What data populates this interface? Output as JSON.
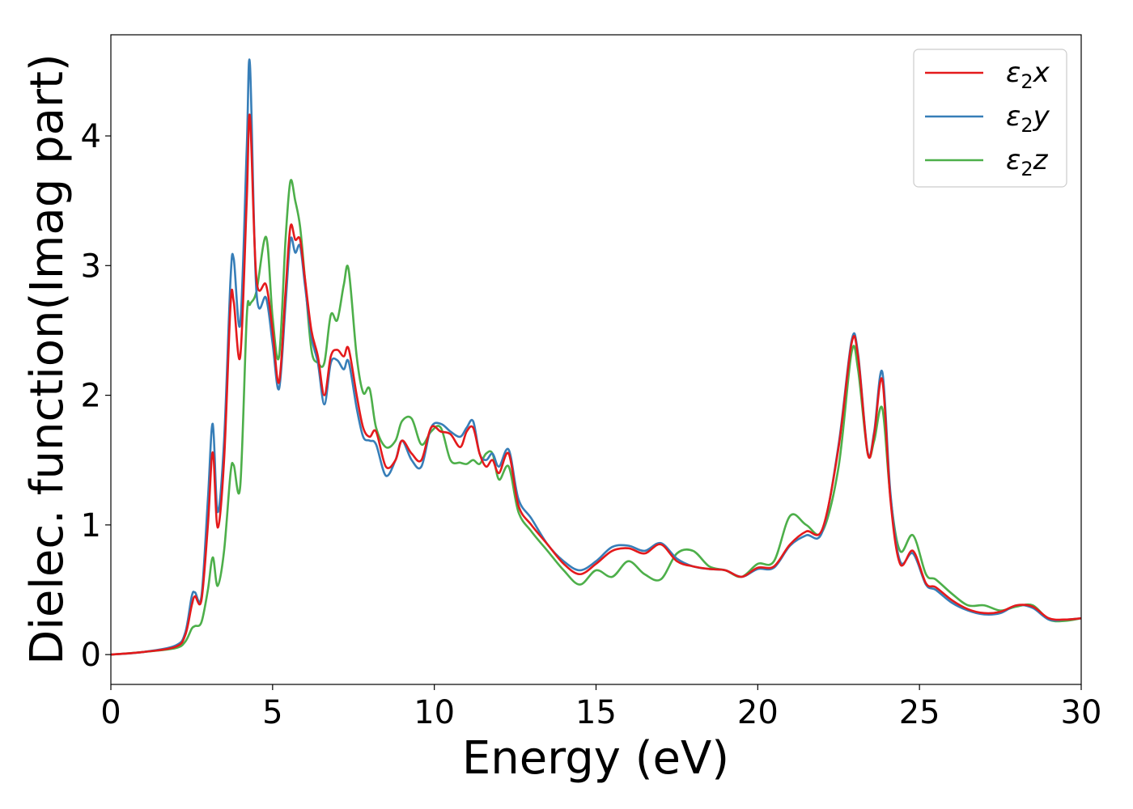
{
  "chart_data": {
    "type": "line",
    "xlabel": "Energy (eV)",
    "ylabel": "Dielec. function(Imag part)",
    "xlim": [
      0,
      30
    ],
    "ylim": [
      -0.23,
      4.78
    ],
    "xticks": [
      0,
      5,
      10,
      15,
      20,
      25,
      30
    ],
    "yticks": [
      0,
      1,
      2,
      3,
      4
    ],
    "grid": false,
    "legend_position": "top-right",
    "series": [
      {
        "name": "ε₂x",
        "legend": {
          "base": "ε",
          "sub": "2",
          "var": "x"
        },
        "color": "#e41a1c",
        "x": [
          0,
          1,
          2,
          2.3,
          2.5,
          2.6,
          2.8,
          3.0,
          3.15,
          3.3,
          3.5,
          3.7,
          3.8,
          4.0,
          4.2,
          4.3,
          4.5,
          4.8,
          5.0,
          5.2,
          5.4,
          5.55,
          5.7,
          5.85,
          6.0,
          6.2,
          6.4,
          6.6,
          6.8,
          7.0,
          7.2,
          7.35,
          7.6,
          7.8,
          8.0,
          8.2,
          8.5,
          8.8,
          9.0,
          9.3,
          9.6,
          9.9,
          10.2,
          10.5,
          10.8,
          11.0,
          11.2,
          11.4,
          11.6,
          11.8,
          12.0,
          12.3,
          12.6,
          13.0,
          13.5,
          14.0,
          14.5,
          15.0,
          15.5,
          16.0,
          16.5,
          17.0,
          17.5,
          18.0,
          18.5,
          19.0,
          19.5,
          20.0,
          20.5,
          21.0,
          21.5,
          22.0,
          22.5,
          22.9,
          23.1,
          23.4,
          23.6,
          23.85,
          24.1,
          24.4,
          24.8,
          25.2,
          25.5,
          26.0,
          26.5,
          27.0,
          27.5,
          28.0,
          28.5,
          29.0,
          29.5,
          30.0
        ],
        "y": [
          0.0,
          0.02,
          0.06,
          0.15,
          0.38,
          0.45,
          0.42,
          1.0,
          1.56,
          0.98,
          1.5,
          2.7,
          2.72,
          2.3,
          3.5,
          4.15,
          2.9,
          2.85,
          2.5,
          2.1,
          2.8,
          3.3,
          3.2,
          3.2,
          2.9,
          2.5,
          2.3,
          2.0,
          2.3,
          2.35,
          2.3,
          2.36,
          2.0,
          1.75,
          1.68,
          1.72,
          1.45,
          1.5,
          1.65,
          1.55,
          1.5,
          1.75,
          1.72,
          1.7,
          1.6,
          1.72,
          1.75,
          1.55,
          1.45,
          1.5,
          1.4,
          1.55,
          1.15,
          1.0,
          0.85,
          0.7,
          0.62,
          0.7,
          0.8,
          0.82,
          0.78,
          0.85,
          0.72,
          0.68,
          0.66,
          0.65,
          0.6,
          0.67,
          0.68,
          0.85,
          0.95,
          0.97,
          1.6,
          2.4,
          2.3,
          1.55,
          1.7,
          2.12,
          1.2,
          0.7,
          0.8,
          0.55,
          0.52,
          0.42,
          0.35,
          0.32,
          0.33,
          0.38,
          0.37,
          0.28,
          0.27,
          0.28
        ]
      },
      {
        "name": "ε₂y",
        "legend": {
          "base": "ε",
          "sub": "2",
          "var": "y"
        },
        "color": "#377eb8",
        "x": [
          0,
          1,
          2,
          2.3,
          2.5,
          2.6,
          2.8,
          3.0,
          3.15,
          3.3,
          3.5,
          3.7,
          3.8,
          4.0,
          4.2,
          4.3,
          4.5,
          4.8,
          5.0,
          5.2,
          5.4,
          5.55,
          5.7,
          5.85,
          6.0,
          6.2,
          6.4,
          6.6,
          6.8,
          7.0,
          7.2,
          7.35,
          7.6,
          7.8,
          8.0,
          8.2,
          8.5,
          8.8,
          9.0,
          9.3,
          9.6,
          9.9,
          10.2,
          10.5,
          10.8,
          11.0,
          11.2,
          11.4,
          11.6,
          11.8,
          12.0,
          12.3,
          12.6,
          13.0,
          13.5,
          14.0,
          14.5,
          15.0,
          15.5,
          16.0,
          16.5,
          17.0,
          17.5,
          18.0,
          18.5,
          19.0,
          19.5,
          20.0,
          20.5,
          21.0,
          21.5,
          22.0,
          22.5,
          22.9,
          23.1,
          23.4,
          23.6,
          23.85,
          24.1,
          24.4,
          24.8,
          25.2,
          25.5,
          26.0,
          26.5,
          27.0,
          27.5,
          28.0,
          28.5,
          29.0,
          29.5,
          30.0
        ],
        "y": [
          0.0,
          0.02,
          0.07,
          0.17,
          0.45,
          0.48,
          0.45,
          1.2,
          1.78,
          1.1,
          1.65,
          2.9,
          3.05,
          2.55,
          3.9,
          4.55,
          2.8,
          2.75,
          2.4,
          2.05,
          2.7,
          3.2,
          3.1,
          3.15,
          2.85,
          2.45,
          2.25,
          1.93,
          2.25,
          2.27,
          2.2,
          2.26,
          1.9,
          1.68,
          1.65,
          1.62,
          1.38,
          1.5,
          1.65,
          1.5,
          1.45,
          1.75,
          1.78,
          1.72,
          1.68,
          1.75,
          1.8,
          1.55,
          1.5,
          1.55,
          1.45,
          1.58,
          1.2,
          1.05,
          0.85,
          0.72,
          0.65,
          0.72,
          0.83,
          0.84,
          0.8,
          0.86,
          0.74,
          0.68,
          0.66,
          0.65,
          0.6,
          0.66,
          0.67,
          0.84,
          0.92,
          0.95,
          1.62,
          2.42,
          2.32,
          1.56,
          1.72,
          2.18,
          1.25,
          0.72,
          0.78,
          0.54,
          0.5,
          0.4,
          0.34,
          0.31,
          0.32,
          0.38,
          0.36,
          0.27,
          0.27,
          0.28
        ]
      },
      {
        "name": "ε₂z",
        "legend": {
          "base": "ε",
          "sub": "2",
          "var": "z"
        },
        "color": "#4daf4a",
        "x": [
          0,
          1,
          2,
          2.3,
          2.5,
          2.6,
          2.8,
          3.0,
          3.15,
          3.3,
          3.5,
          3.7,
          3.8,
          4.0,
          4.2,
          4.3,
          4.5,
          4.8,
          5.0,
          5.2,
          5.4,
          5.55,
          5.7,
          5.85,
          6.0,
          6.2,
          6.4,
          6.6,
          6.8,
          7.0,
          7.2,
          7.35,
          7.6,
          7.8,
          8.0,
          8.2,
          8.5,
          8.8,
          9.0,
          9.3,
          9.6,
          9.9,
          10.2,
          10.5,
          10.8,
          11.0,
          11.2,
          11.4,
          11.6,
          11.8,
          12.0,
          12.3,
          12.6,
          13.0,
          13.5,
          14.0,
          14.5,
          15.0,
          15.5,
          16.0,
          16.5,
          17.0,
          17.5,
          18.0,
          18.5,
          19.0,
          19.5,
          20.0,
          20.5,
          21.0,
          21.5,
          22.0,
          22.5,
          22.9,
          23.1,
          23.4,
          23.6,
          23.85,
          24.1,
          24.4,
          24.8,
          25.2,
          25.5,
          26.0,
          26.5,
          27.0,
          27.5,
          28.0,
          28.5,
          29.0,
          29.5,
          30.0
        ],
        "y": [
          0.0,
          0.02,
          0.05,
          0.1,
          0.2,
          0.22,
          0.25,
          0.5,
          0.75,
          0.53,
          0.8,
          1.4,
          1.46,
          1.3,
          2.6,
          2.7,
          2.8,
          3.22,
          2.6,
          2.3,
          3.2,
          3.65,
          3.5,
          3.3,
          2.9,
          2.35,
          2.25,
          2.25,
          2.62,
          2.58,
          2.85,
          2.97,
          2.3,
          2.02,
          2.05,
          1.75,
          1.6,
          1.65,
          1.8,
          1.82,
          1.62,
          1.72,
          1.75,
          1.5,
          1.48,
          1.47,
          1.5,
          1.47,
          1.55,
          1.55,
          1.35,
          1.45,
          1.1,
          0.95,
          0.8,
          0.65,
          0.54,
          0.65,
          0.6,
          0.72,
          0.62,
          0.58,
          0.78,
          0.8,
          0.68,
          0.65,
          0.6,
          0.7,
          0.72,
          1.07,
          1.0,
          0.95,
          1.45,
          2.33,
          2.2,
          1.55,
          1.65,
          1.9,
          1.22,
          0.8,
          0.92,
          0.62,
          0.58,
          0.47,
          0.38,
          0.38,
          0.34,
          0.37,
          0.38,
          0.27,
          0.26,
          0.28
        ]
      }
    ]
  }
}
